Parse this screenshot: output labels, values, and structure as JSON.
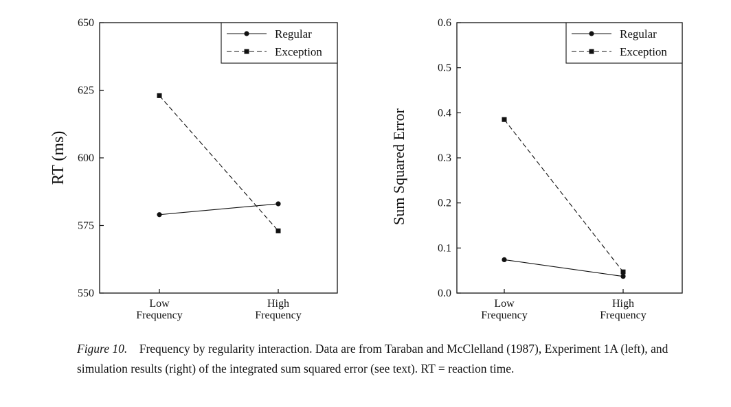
{
  "chart_data": [
    {
      "type": "line",
      "ylabel": "RT (ms)",
      "xlabel": "",
      "categories": [
        [
          "Low",
          "Frequency"
        ],
        [
          "High",
          "Frequency"
        ]
      ],
      "ylim": [
        550,
        650
      ],
      "yticks": [
        "550",
        "575",
        "600",
        "625",
        "650"
      ],
      "ytick_values": [
        550,
        575,
        600,
        625,
        650
      ],
      "grid": false,
      "legend_position": "top-right",
      "series": [
        {
          "name": "Regular",
          "values": [
            579,
            583
          ],
          "line": "solid",
          "marker": "circle"
        },
        {
          "name": "Exception",
          "values": [
            623,
            573
          ],
          "line": "dashed",
          "marker": "square"
        }
      ]
    },
    {
      "type": "line",
      "ylabel": "Sum Squared Error",
      "xlabel": "",
      "categories": [
        [
          "Low",
          "Frequency"
        ],
        [
          "High",
          "Frequency"
        ]
      ],
      "ylim": [
        0,
        0.6
      ],
      "yticks": [
        "0.0",
        "0.1",
        "0.2",
        "0.3",
        "0.4",
        "0.5",
        "0.6"
      ],
      "ytick_values": [
        0,
        0.1,
        0.2,
        0.3,
        0.4,
        0.5,
        0.6
      ],
      "grid": false,
      "legend_position": "top-right",
      "series": [
        {
          "name": "Regular",
          "values": [
            0.074,
            0.037
          ],
          "line": "solid",
          "marker": "circle"
        },
        {
          "name": "Exception",
          "values": [
            0.385,
            0.047
          ],
          "line": "dashed",
          "marker": "square"
        }
      ]
    }
  ],
  "caption": {
    "label": "Figure 10.",
    "text": "Frequency by regularity interaction. Data are from Taraban and McClelland (1987), Experiment 1A (left), and simulation results (right) of the integrated sum squared error (see text). RT = reaction time."
  }
}
